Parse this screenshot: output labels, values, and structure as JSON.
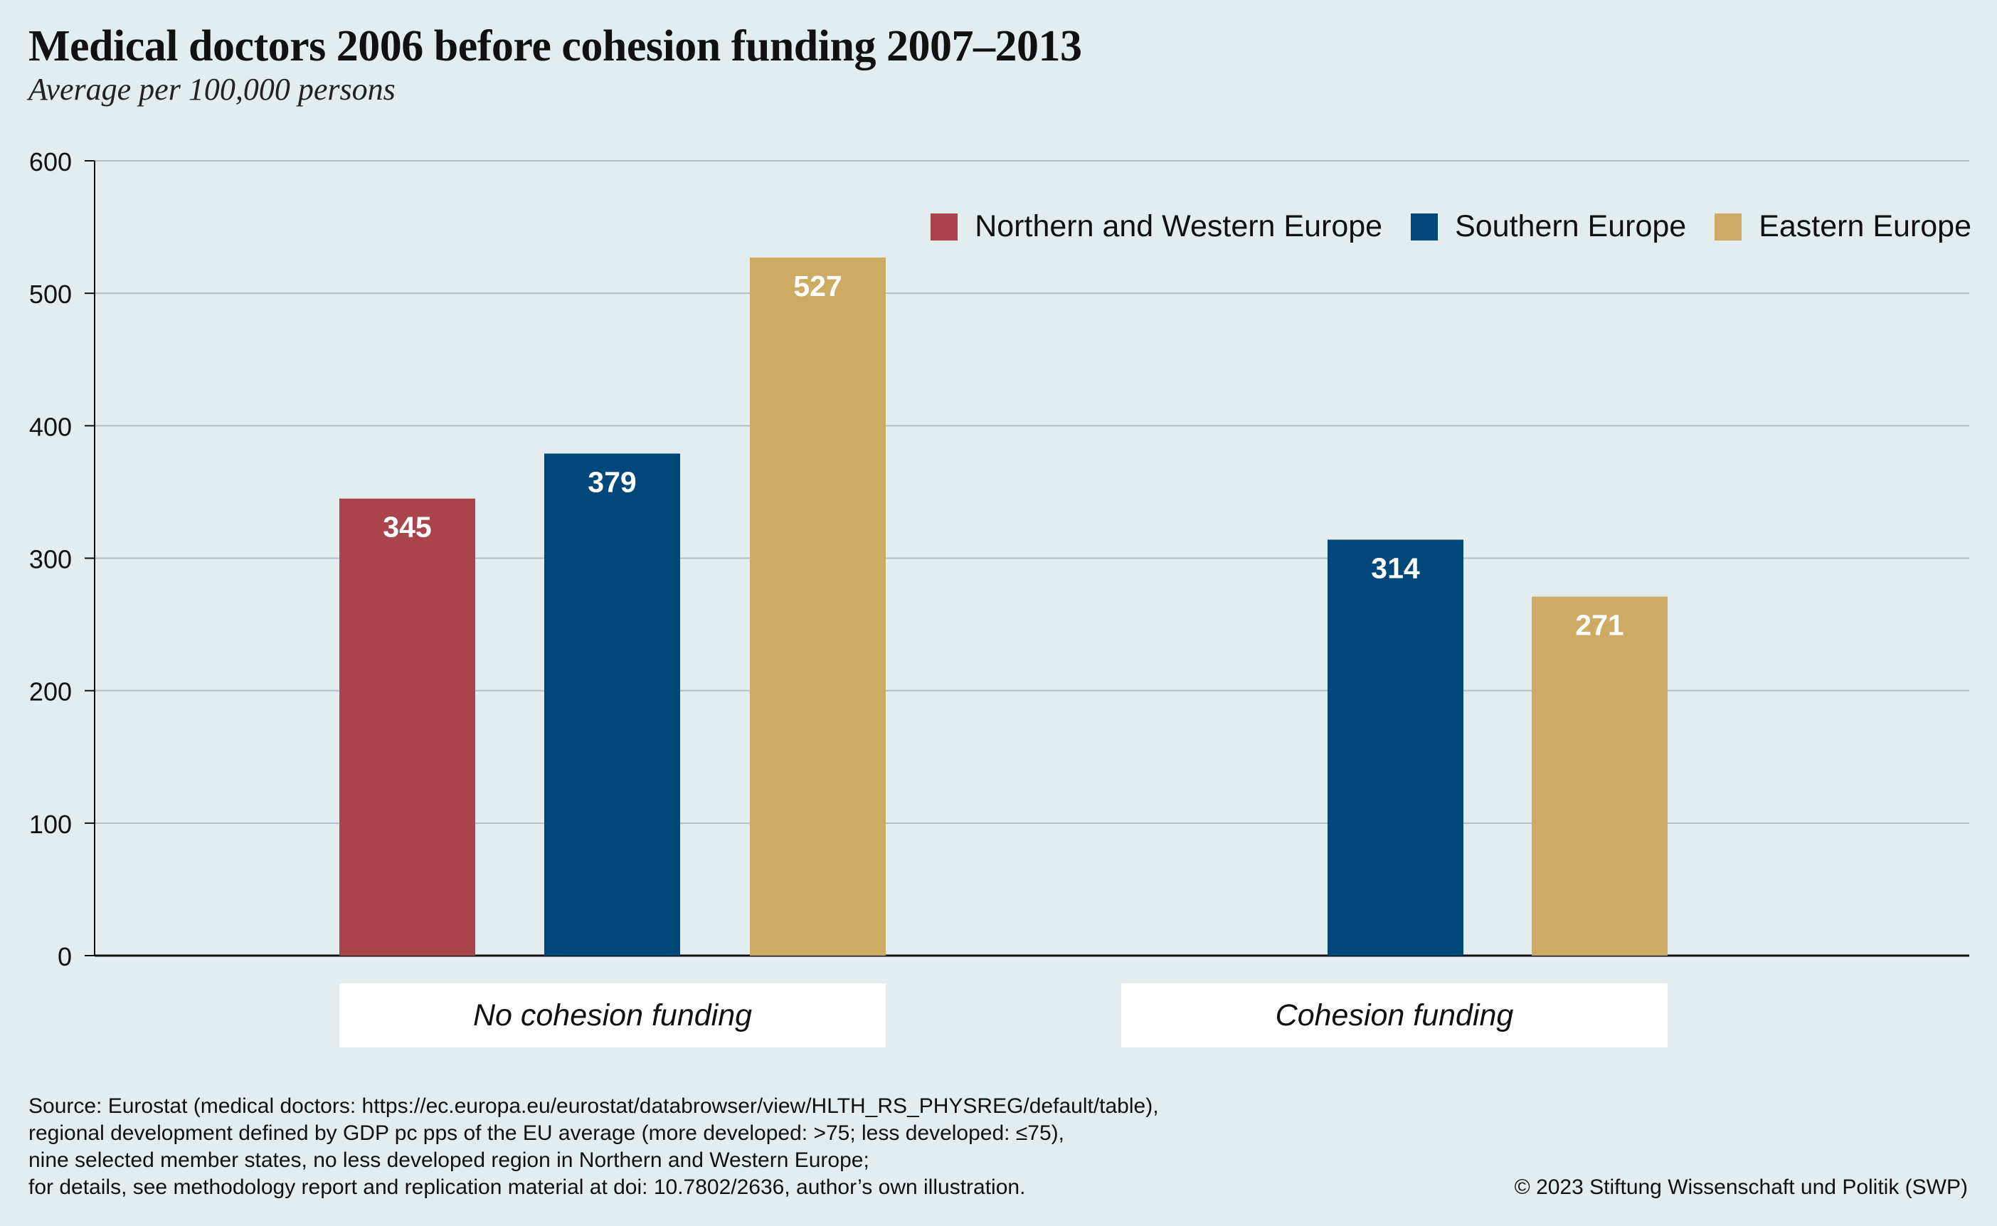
{
  "header": {
    "title": "Medical doctors 2006 before cohesion funding 2007–2013",
    "subtitle": "Average per 100,000 persons"
  },
  "footer": {
    "source_lines": [
      "Source: Eurostat (medical doctors: https://ec.europa.eu/eurostat/databrowser/view/HLTH_RS_PHYSREG/default/table),",
      "regional development defined by GDP pc pps of the EU average (more developed: >75; less developed: ≤75),",
      "nine selected member states, no less developed region in Northern and Western Europe;",
      "for details, see methodology report and replication material at doi: 10.7802/2636, author’s own illustration."
    ],
    "copyright": "© 2023 Stiftung Wissenschaft und Politik (SWP)"
  },
  "chart_data": {
    "type": "bar",
    "title": "Medical doctors 2006 before cohesion funding 2007–2013",
    "subtitle": "Average per 100,000 persons",
    "xlabel": "",
    "ylabel": "",
    "ylim": [
      0,
      600
    ],
    "yticks": [
      0,
      100,
      200,
      300,
      400,
      500,
      600
    ],
    "grid": true,
    "legend_position": "top-right",
    "categories": [
      "No cohesion funding",
      "Cohesion funding"
    ],
    "series": [
      {
        "name": "Northern and Western Europe",
        "color": "#a8444a",
        "values": [
          345,
          null
        ]
      },
      {
        "name": "Southern Europe",
        "color": "#00477a",
        "values": [
          379,
          314
        ]
      },
      {
        "name": "Eastern Europe",
        "color": "#cdab62",
        "values": [
          527,
          271
        ]
      }
    ],
    "data_labels": true
  }
}
